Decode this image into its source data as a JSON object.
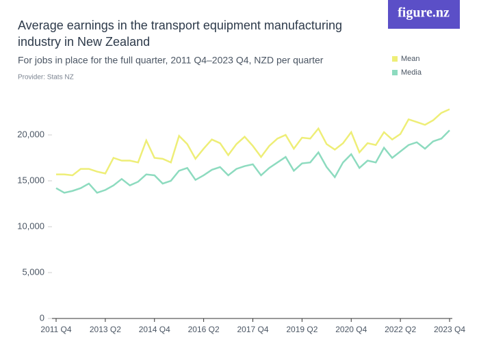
{
  "chart_data": {
    "type": "line",
    "title_lines": [
      "Average earnings in the transport equipment manufacturing",
      "industry in New Zealand"
    ],
    "subtitle": "For jobs in place for the full quarter, 2011 Q4–2023 Q4, NZD per quarter",
    "provider": "Provider: Stats NZ",
    "logo": "figure.nz",
    "categories": [
      "2011 Q4",
      null,
      null,
      null,
      null,
      null,
      "2013 Q2",
      null,
      null,
      null,
      null,
      null,
      "2014 Q4",
      null,
      null,
      null,
      null,
      null,
      "2016 Q2",
      null,
      null,
      null,
      null,
      null,
      "2017 Q4",
      null,
      null,
      null,
      null,
      null,
      "2019 Q2",
      null,
      null,
      null,
      null,
      null,
      "2020 Q4",
      null,
      null,
      null,
      null,
      null,
      "2022 Q2",
      null,
      null,
      null,
      null,
      null,
      "2023 Q4"
    ],
    "series": [
      {
        "name": "Mean",
        "color": "#eeee77",
        "values": [
          15700,
          15700,
          15600,
          16300,
          16300,
          16000,
          15800,
          17500,
          17200,
          17200,
          17000,
          19400,
          17500,
          17400,
          17000,
          19900,
          19000,
          17400,
          18500,
          19500,
          19100,
          17800,
          19000,
          19800,
          18800,
          17600,
          18800,
          19600,
          20000,
          18500,
          19700,
          19600,
          20700,
          19000,
          18400,
          19100,
          20300,
          18100,
          19100,
          18900,
          20300,
          19500,
          20100,
          21700,
          21400,
          21100,
          21600,
          22400,
          22800
        ]
      },
      {
        "name": "Media",
        "color": "#8ddbbf",
        "values": [
          14200,
          13700,
          13900,
          14200,
          14700,
          13700,
          14000,
          14500,
          15200,
          14500,
          14900,
          15700,
          15600,
          14700,
          15000,
          16100,
          16400,
          15100,
          15600,
          16200,
          16500,
          15600,
          16300,
          16600,
          16800,
          15600,
          16400,
          17000,
          17600,
          16100,
          16900,
          17000,
          18100,
          16500,
          15400,
          17000,
          17900,
          16400,
          17200,
          17000,
          18600,
          17500,
          18200,
          18900,
          19200,
          18500,
          19300,
          19600,
          20500
        ]
      }
    ],
    "ylim": [
      0,
      23000
    ],
    "yticks": [
      0,
      {
        "value": 5000,
        "label": "5,000"
      },
      {
        "value": 10000,
        "label": "10,000"
      },
      {
        "value": 15000,
        "label": "15,000"
      },
      {
        "value": 20000,
        "label": "20,000"
      }
    ],
    "grid": false
  }
}
